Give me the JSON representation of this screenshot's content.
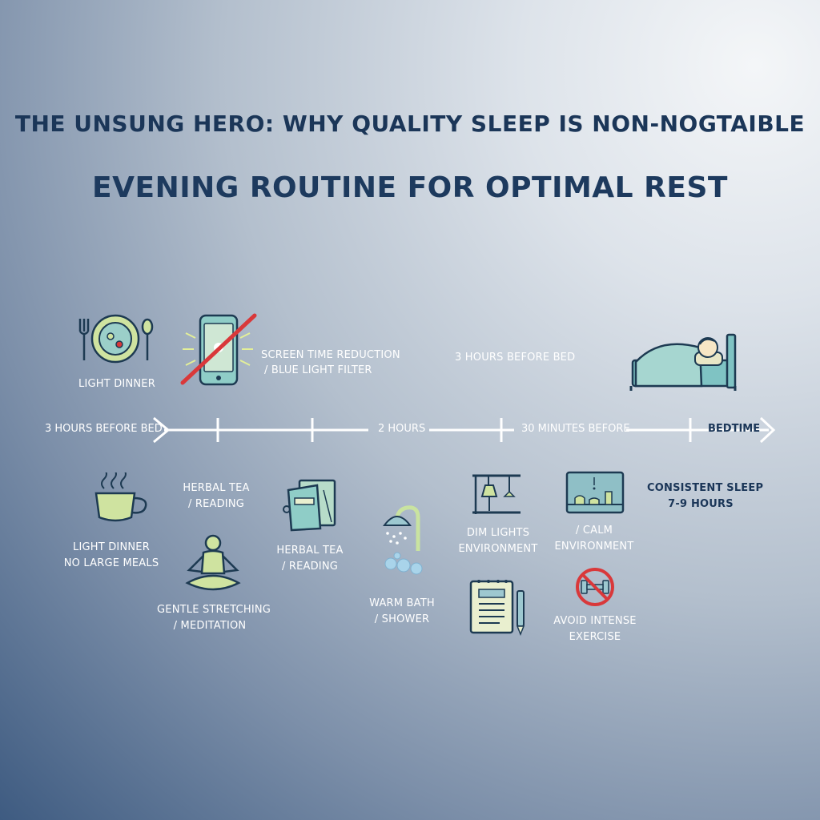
{
  "title": "THE UNSUNG HERO: WHY QUALITY SLEEP IS NON-NOGTAIBLE",
  "subtitle": "EVENING ROUTINE FOR OPTIMAL REST",
  "timeline": {
    "start_label": "3 HOURS BEFORE BED",
    "mid_label": "2 HOURS",
    "late_label": "30 MINUTES BEFORE",
    "end_label": "BEDTIME"
  },
  "top_items": {
    "light_dinner": "LIGHT DINNER",
    "screen_line1": "SCREEN TIME REDUCTION",
    "screen_line2": "/ BLUE LIGHT FILTER",
    "hours_before": "3 HOURS BEFORE BED"
  },
  "bottom_items": {
    "light_dinner_line1": "LIGHT DINNER",
    "light_dinner_line2": "NO LARGE MEALS",
    "herbal_tea1_line1": "HERBAL TEA",
    "herbal_tea1_line2": "/ READING",
    "stretch_line1": "GENTLE STRETCHING",
    "stretch_line2": "/ MEDITATION",
    "herbal_tea2_line1": "HERBAL TEA",
    "herbal_tea2_line2": "/ READING",
    "bath_line1": "WARM BATH",
    "bath_line2": "/ SHOWER",
    "dim_line1": "DIM LIGHTS",
    "dim_line2": "ENVIRONMENT",
    "calm_line1": "/ CALM",
    "calm_line2": "ENVIRONMENT",
    "exercise_line1": "AVOID INTENSE",
    "exercise_line2": "EXERCISE",
    "consistent_line1": "CONSISTENT SLEEP",
    "consistent_line2": "7-9 HOURS"
  },
  "icons": [
    "dinner-plate-icon",
    "phone-no-screen-icon",
    "bed-icon",
    "tea-cup-icon",
    "meditation-icon",
    "book-icon",
    "shower-icon",
    "lamp-icon",
    "notepad-icon",
    "calm-shelf-icon",
    "no-exercise-icon"
  ],
  "colors": {
    "title": "#1b3658",
    "icon_fill": "#cfe3a0",
    "icon_teal": "#7cc2c2",
    "icon_stroke": "#1d3a52",
    "prohibit_red": "#d9383a"
  }
}
